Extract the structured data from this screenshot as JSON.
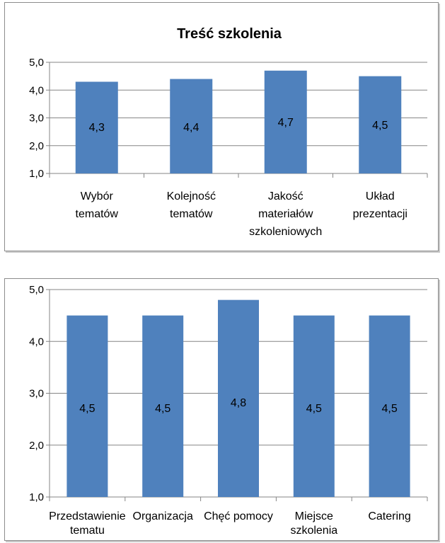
{
  "chart_data": [
    {
      "type": "bar",
      "title": "Treść szkolenia",
      "xlabel": "",
      "ylabel": "",
      "ylim": [
        1,
        5
      ],
      "yticks": [
        "1,0",
        "2,0",
        "3,0",
        "4,0",
        "5,0"
      ],
      "categories": [
        [
          "Wybór",
          "tematów"
        ],
        [
          "Kolejność",
          "tematów"
        ],
        [
          "Jakość",
          "materiałów",
          "szkoleniowych"
        ],
        [
          "Układ",
          "prezentacji"
        ]
      ],
      "values": [
        4.3,
        4.4,
        4.7,
        4.5
      ],
      "data_labels": [
        "4,3",
        "4,4",
        "4,7",
        "4,5"
      ],
      "bar_color": "#4f81bd",
      "grid": true
    },
    {
      "type": "bar",
      "title": "",
      "xlabel": "",
      "ylabel": "",
      "ylim": [
        1,
        5
      ],
      "yticks": [
        "1,0",
        "2,0",
        "3,0",
        "4,0",
        "5,0"
      ],
      "categories": [
        [
          "Przedstawienie",
          "tematu"
        ],
        [
          "Organizacja"
        ],
        [
          "Chęć pomocy"
        ],
        [
          "Miejsce",
          "szkolenia"
        ],
        [
          "Catering"
        ]
      ],
      "values": [
        4.5,
        4.5,
        4.8,
        4.5,
        4.5
      ],
      "data_labels": [
        "4,5",
        "4,5",
        "4,8",
        "4,5",
        "4,5"
      ],
      "bar_color": "#4f81bd",
      "grid": true
    }
  ]
}
